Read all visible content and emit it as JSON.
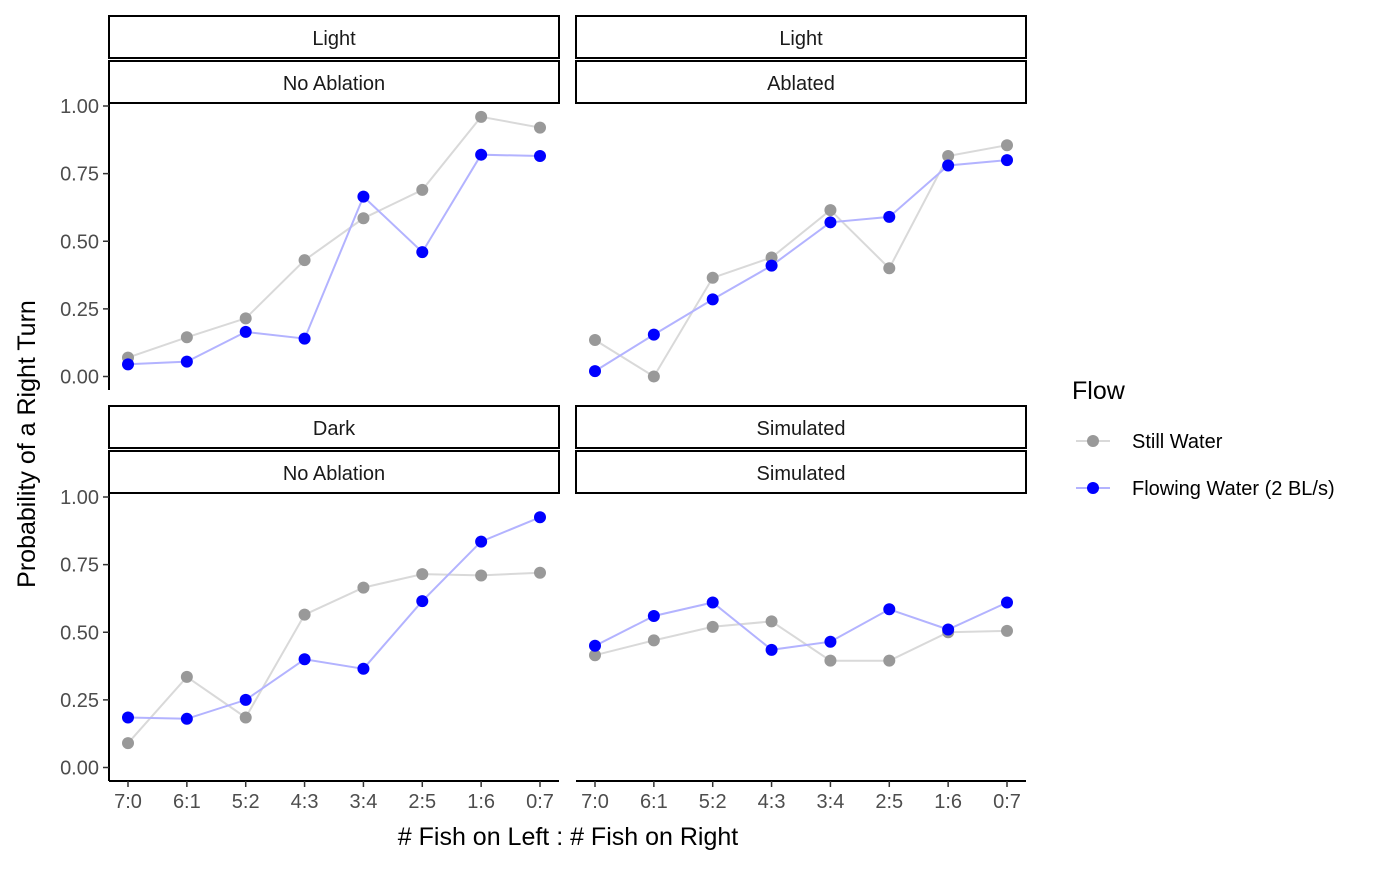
{
  "chart_data": {
    "type": "line",
    "xlabel": "# Fish on Left : # Fish on Right",
    "ylabel": "Probability of a Right Turn",
    "categories": [
      "7:0",
      "6:1",
      "5:2",
      "4:3",
      "3:4",
      "2:5",
      "1:6",
      "0:7"
    ],
    "ylim": [
      0,
      1
    ],
    "y_ticks": [
      "0.00",
      "0.25",
      "0.50",
      "0.75",
      "1.00"
    ],
    "grid": false,
    "legend": {
      "title": "Flow",
      "position": "right",
      "entries": [
        {
          "name": "Still Water",
          "color": "#999999"
        },
        {
          "name": "Flowing Water (2 BL/s)",
          "color": "#0000ff"
        }
      ]
    },
    "panels": [
      {
        "strip_top": "Light",
        "strip_bottom": "No Ablation",
        "series": [
          {
            "name": "Still Water",
            "values": [
              0.07,
              0.145,
              0.215,
              0.43,
              0.585,
              0.69,
              0.96,
              0.92
            ]
          },
          {
            "name": "Flowing Water (2 BL/s)",
            "values": [
              0.045,
              0.055,
              0.165,
              0.14,
              0.665,
              0.46,
              0.82,
              0.815
            ]
          }
        ]
      },
      {
        "strip_top": "Light",
        "strip_bottom": "Ablated",
        "series": [
          {
            "name": "Still Water",
            "values": [
              0.135,
              0.0,
              0.365,
              0.44,
              0.615,
              0.4,
              0.815,
              0.855
            ]
          },
          {
            "name": "Flowing Water (2 BL/s)",
            "values": [
              0.02,
              0.155,
              0.285,
              0.41,
              0.57,
              0.59,
              0.78,
              0.8
            ]
          }
        ]
      },
      {
        "strip_top": "Dark",
        "strip_bottom": "No Ablation",
        "series": [
          {
            "name": "Still Water",
            "values": [
              0.09,
              0.335,
              0.185,
              0.565,
              0.665,
              0.715,
              0.71,
              0.72
            ]
          },
          {
            "name": "Flowing Water (2 BL/s)",
            "values": [
              0.185,
              0.18,
              0.25,
              0.4,
              0.365,
              0.615,
              0.835,
              0.925
            ]
          }
        ]
      },
      {
        "strip_top": "Simulated",
        "strip_bottom": "Simulated",
        "series": [
          {
            "name": "Still Water",
            "values": [
              0.415,
              0.47,
              0.52,
              0.54,
              0.395,
              0.395,
              0.5,
              0.505
            ]
          },
          {
            "name": "Flowing Water (2 BL/s)",
            "values": [
              0.45,
              0.56,
              0.61,
              0.435,
              0.465,
              0.585,
              0.51,
              0.61
            ]
          }
        ]
      }
    ]
  }
}
